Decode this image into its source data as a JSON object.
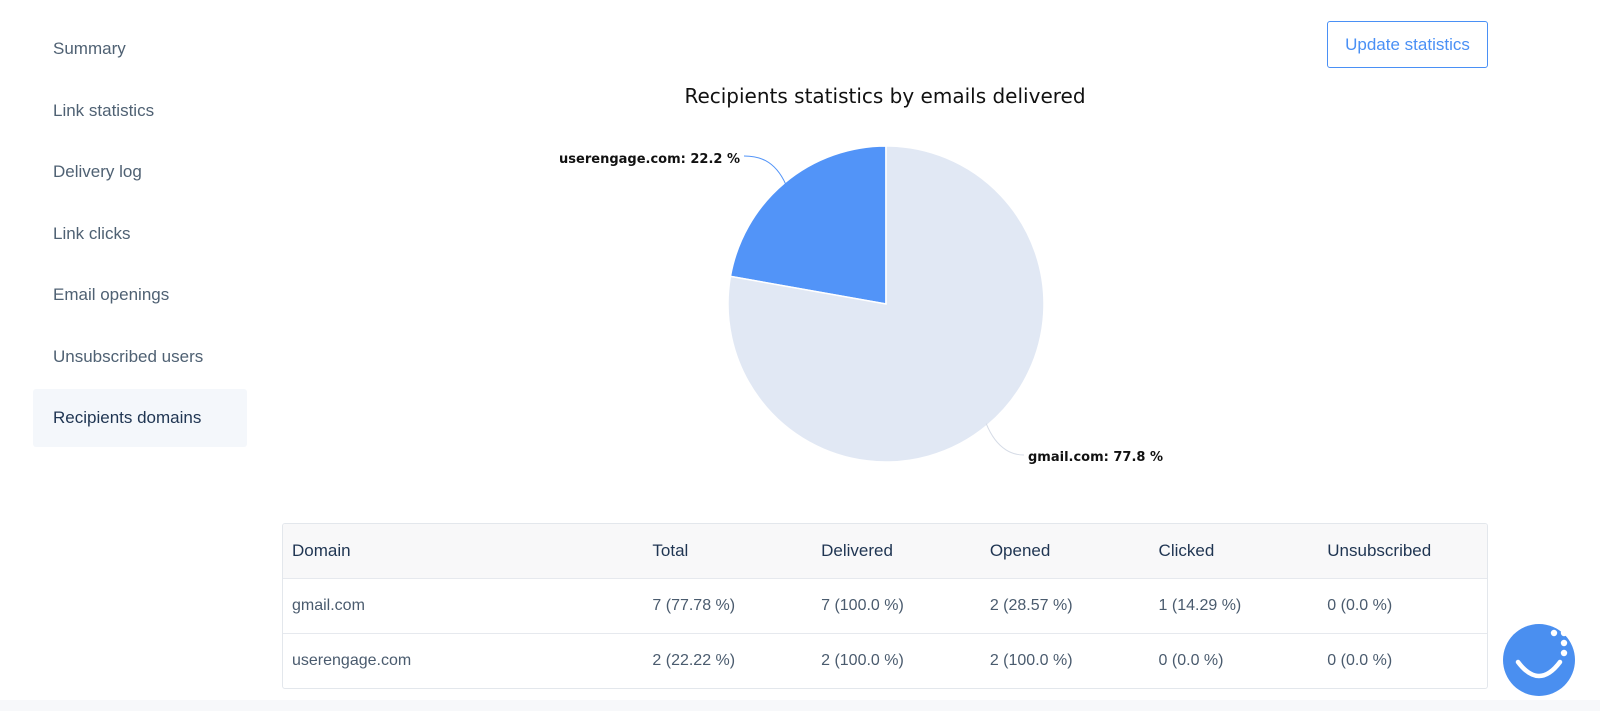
{
  "sidebar": {
    "items": [
      {
        "label": "Summary",
        "active": false
      },
      {
        "label": "Link statistics",
        "active": false
      },
      {
        "label": "Delivery log",
        "active": false
      },
      {
        "label": "Link clicks",
        "active": false
      },
      {
        "label": "Email openings",
        "active": false
      },
      {
        "label": "Unsubscribed users",
        "active": false
      },
      {
        "label": "Recipients domains",
        "active": true
      }
    ]
  },
  "toolbar": {
    "update_label": "Update statistics"
  },
  "chart_data": {
    "type": "pie",
    "title": "Recipients statistics by emails delivered",
    "slices": [
      {
        "name": "userengage.com",
        "value": 22.2,
        "label": "userengage.com: 22.2 %",
        "color": "#5294f8"
      },
      {
        "name": "gmail.com",
        "value": 77.8,
        "label": "gmail.com: 77.8 %",
        "color": "#e1e8f4"
      }
    ]
  },
  "table": {
    "headers": {
      "domain": "Domain",
      "total": "Total",
      "delivered": "Delivered",
      "opened": "Opened",
      "clicked": "Clicked",
      "unsubscribed": "Unsubscribed"
    },
    "rows": [
      {
        "domain": "gmail.com",
        "total": "7 (77.78 %)",
        "delivered": "7 (100.0 %)",
        "opened": "2 (28.57 %)",
        "clicked": "1 (14.29 %)",
        "unsubscribed": "0 (0.0 %)"
      },
      {
        "domain": "userengage.com",
        "total": "2 (22.22 %)",
        "delivered": "2 (100.0 %)",
        "opened": "2 (100.0 %)",
        "clicked": "0 (0.0 %)",
        "unsubscribed": "0 (0.0 %)"
      }
    ]
  },
  "chat_widget": {
    "icon": "chat-smile-icon",
    "color": "#4a8ff0"
  }
}
